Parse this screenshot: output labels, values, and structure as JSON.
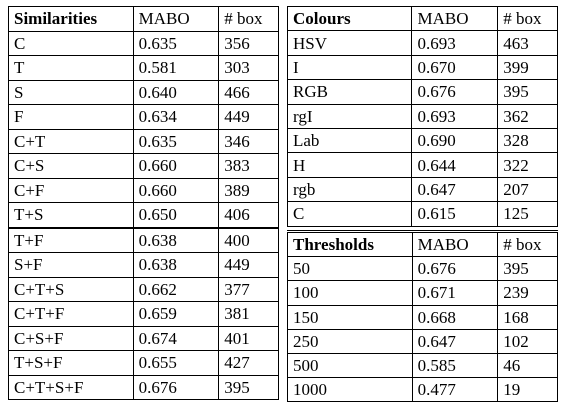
{
  "left": {
    "header": [
      "Similarities",
      "MABO",
      "# box"
    ],
    "rows": [
      [
        "C",
        "0.635",
        "356"
      ],
      [
        "T",
        "0.581",
        "303"
      ],
      [
        "S",
        "0.640",
        "466"
      ],
      [
        "F",
        "0.634",
        "449"
      ],
      [
        "C+T",
        "0.635",
        "346"
      ],
      [
        "C+S",
        "0.660",
        "383"
      ],
      [
        "C+F",
        "0.660",
        "389"
      ],
      [
        "T+S",
        "0.650",
        "406"
      ],
      [
        "T+F",
        "0.638",
        "400"
      ],
      [
        "S+F",
        "0.638",
        "449"
      ],
      [
        "C+T+S",
        "0.662",
        "377"
      ],
      [
        "C+T+F",
        "0.659",
        "381"
      ],
      [
        "C+S+F",
        "0.674",
        "401"
      ],
      [
        "T+S+F",
        "0.655",
        "427"
      ],
      [
        "C+T+S+F",
        "0.676",
        "395"
      ]
    ]
  },
  "colours": {
    "header": [
      "Colours",
      "MABO",
      "# box"
    ],
    "rows": [
      [
        "HSV",
        "0.693",
        "463"
      ],
      [
        "I",
        "0.670",
        "399"
      ],
      [
        "RGB",
        "0.676",
        "395"
      ],
      [
        "rgI",
        "0.693",
        "362"
      ],
      [
        "Lab",
        "0.690",
        "328"
      ],
      [
        "H",
        "0.644",
        "322"
      ],
      [
        "rgb",
        "0.647",
        "207"
      ],
      [
        "C",
        "0.615",
        "125"
      ]
    ]
  },
  "thresholds": {
    "header": [
      "Thresholds",
      "MABO",
      "# box"
    ],
    "rows": [
      [
        "50",
        "0.676",
        "395"
      ],
      [
        "100",
        "0.671",
        "239"
      ],
      [
        "150",
        "0.668",
        "168"
      ],
      [
        "250",
        "0.647",
        "102"
      ],
      [
        "500",
        "0.585",
        "46"
      ],
      [
        "1000",
        "0.477",
        "19"
      ]
    ]
  }
}
